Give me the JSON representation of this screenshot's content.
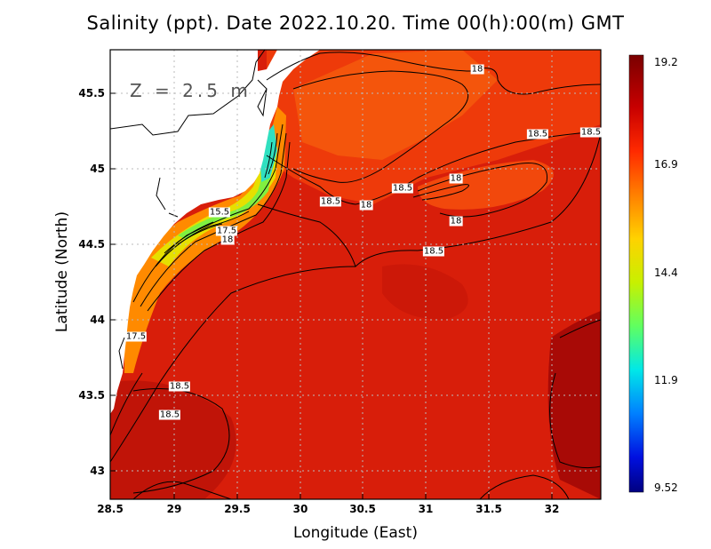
{
  "title": "Salinity (ppt). Date 2022.10.20. Time 00(h):00(m) GMT",
  "depth_label": "Z = 2.5 m",
  "x_axis": {
    "label": "Longitude (East)",
    "ticks": [
      "28.5",
      "29",
      "29.5",
      "30",
      "30.5",
      "31",
      "31.5",
      "32"
    ]
  },
  "y_axis": {
    "label": "Latitude (North)",
    "ticks": [
      "45.5",
      "45",
      "44.5",
      "44",
      "43.5",
      "43"
    ]
  },
  "colorbar": {
    "ticks": [
      "19.2",
      "16.9",
      "14.4",
      "11.9",
      "9.52"
    ]
  },
  "contour_labels": [
    "18",
    "18.5",
    "18.5",
    "18",
    "18.5",
    "18.5",
    "18",
    "18",
    "18.5",
    "15.5",
    "17.5",
    "18",
    "17.5",
    "18.5",
    "18.5"
  ],
  "chart_data": {
    "type": "heatmap",
    "variable": "Salinity (ppt)",
    "xlim": [
      28.5,
      32.4
    ],
    "ylim": [
      42.8,
      45.8
    ],
    "color_range": [
      9.52,
      19.2
    ],
    "contour_levels": [
      15.5,
      17.5,
      18,
      18.5
    ],
    "labeled_contours": [
      {
        "lon": 30.9,
        "lat": 45.0,
        "value": 18.5
      },
      {
        "lon": 31.2,
        "lat": 44.6,
        "value": 18.5
      }
    ]
  }
}
